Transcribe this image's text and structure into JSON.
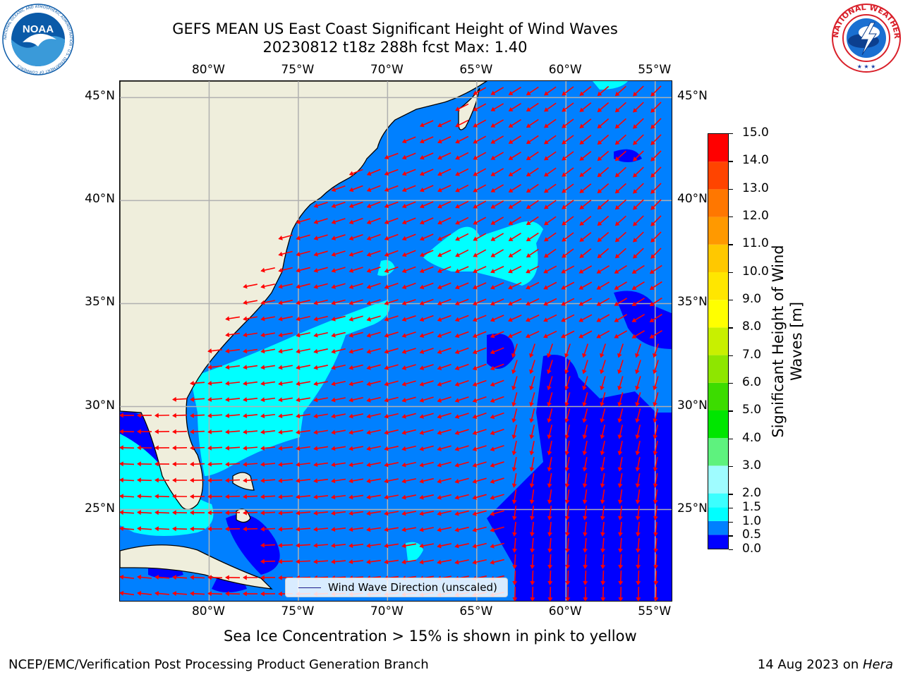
{
  "title": {
    "line1": "GEFS MEAN US East Coast Significant Height of Wind Waves",
    "line2": "20230812 t18z 288h fcst   Max: 1.40"
  },
  "logos": {
    "noaa": {
      "text": "NOAA",
      "ring_text": "NATIONAL OCEANIC AND ATMOSPHERIC ADMINISTRATION · U.S. DEPARTMENT OF COMMERCE",
      "color": "#0a5aa8"
    },
    "nws": {
      "ring_text": "NATIONAL WEATHER SERVICE",
      "color": "#d9202a"
    }
  },
  "map": {
    "lon_ticks": [
      "80°W",
      "75°W",
      "70°W",
      "65°W",
      "60°W",
      "55°W"
    ],
    "lat_ticks": [
      "45°N",
      "40°N",
      "35°N",
      "30°N",
      "25°N"
    ],
    "lon_range": [
      -85,
      -54
    ],
    "lat_range": [
      20.5,
      45.8
    ],
    "land_color": "#efeedc",
    "grid_color": "#b0b0b0",
    "arrow_color": "#ff0000",
    "legend_label": "Wind Wave Direction (unscaled)"
  },
  "colorbar": {
    "title_line1": "Significant Height of Wind",
    "title_line2": "Waves [m]",
    "levels": [
      "0.0",
      "0.5",
      "1.0",
      "1.5",
      "2.0",
      "3.0",
      "4.0",
      "5.0",
      "6.0",
      "7.0",
      "8.0",
      "9.0",
      "10.0",
      "11.0",
      "12.0",
      "13.0",
      "14.0",
      "15.0"
    ],
    "colors": [
      "#0000ff",
      "#0080ff",
      "#00ffff",
      "#3cffff",
      "#9ffcff",
      "#5ef27e",
      "#00e600",
      "#3cdc00",
      "#8ee600",
      "#c8f000",
      "#ffff00",
      "#ffe600",
      "#ffc800",
      "#ff9900",
      "#ff7700",
      "#ff4400",
      "#ff0000"
    ]
  },
  "notes": {
    "sea_ice": "Sea Ice Concentration > 15% is shown in pink to yellow"
  },
  "footer": {
    "left": "NCEP/EMC/Verification Post Processing Product Generation Branch",
    "date": "14 Aug 2023 on ",
    "host": "Hera"
  }
}
